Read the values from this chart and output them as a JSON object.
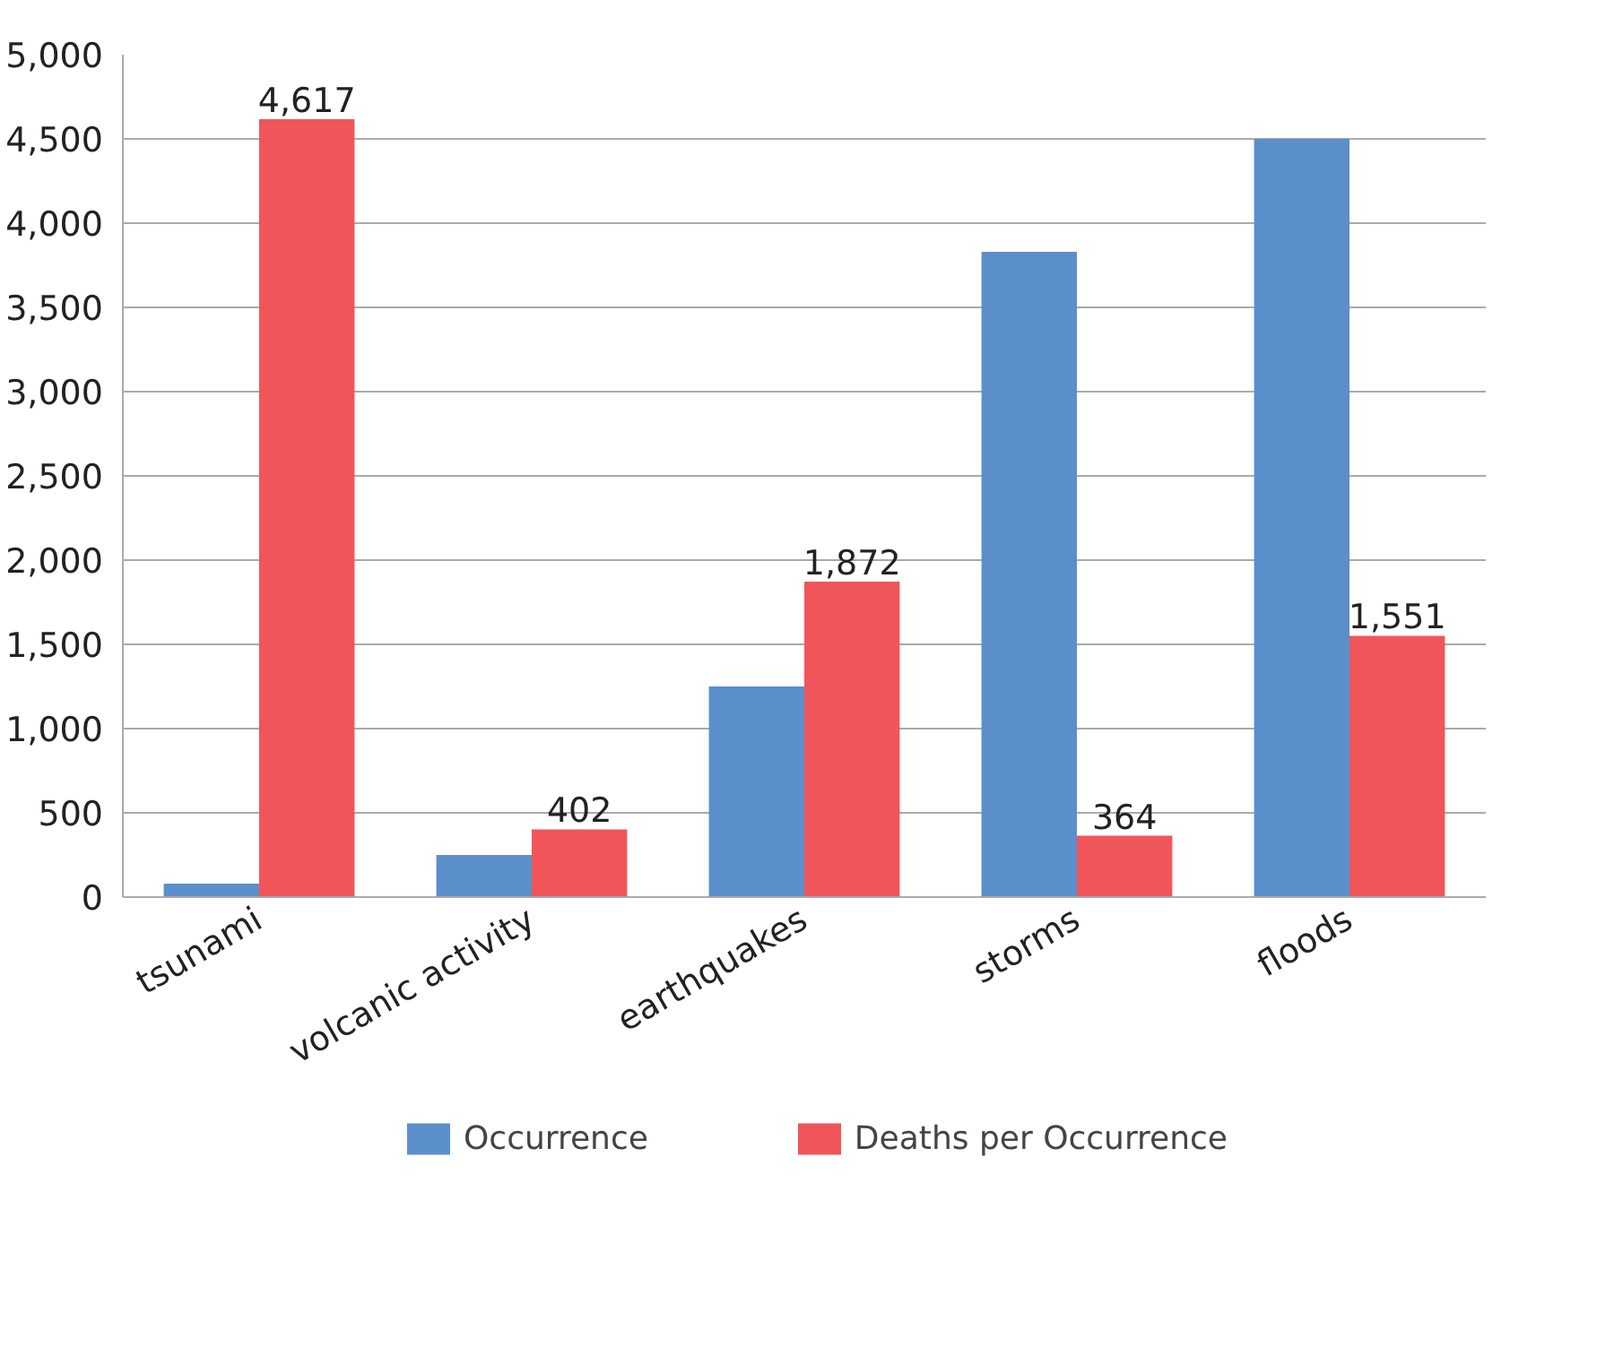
{
  "chart_data": {
    "type": "bar",
    "categories": [
      "tsunami",
      "volcanic activity",
      "earthquakes",
      "storms",
      "floods"
    ],
    "series": [
      {
        "name": "Occurrence",
        "color": "#5b8fcb",
        "values": [
          80,
          250,
          1250,
          3830,
          4500
        ]
      },
      {
        "name": "Deaths per Occurrence",
        "color": "#f0555a",
        "values": [
          4617,
          402,
          1872,
          364,
          1551
        ],
        "value_labels": [
          "4,617",
          "402",
          "1,872",
          "364",
          "1,551"
        ]
      }
    ],
    "ylim": [
      0,
      5000
    ],
    "yticks": [
      {
        "value": 0,
        "label": "0"
      },
      {
        "value": 500,
        "label": "500"
      },
      {
        "value": 1000,
        "label": "1,000"
      },
      {
        "value": 1500,
        "label": "1,500"
      },
      {
        "value": 2000,
        "label": "2,000"
      },
      {
        "value": 2500,
        "label": "2,500"
      },
      {
        "value": 3000,
        "label": "3,000"
      },
      {
        "value": 3500,
        "label": "3,500"
      },
      {
        "value": 4000,
        "label": "4,000"
      },
      {
        "value": 4500,
        "label": "4,500"
      },
      {
        "value": 5000,
        "label": "5,000"
      }
    ],
    "grid": "y",
    "legend": "bottom"
  }
}
